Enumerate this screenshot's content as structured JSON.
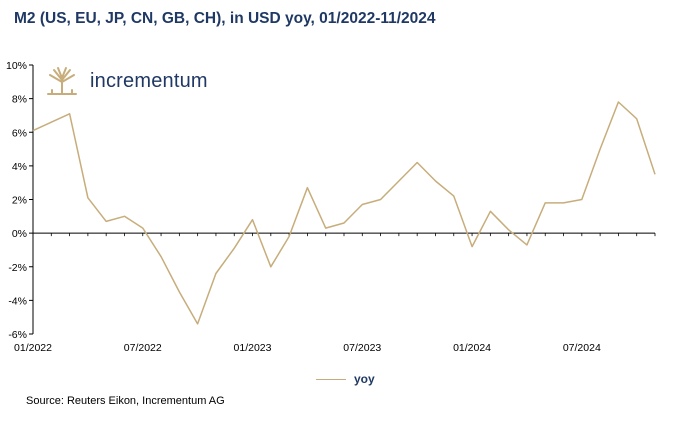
{
  "title": "M2 (US, EU, JP, CN, GB, CH), in USD yoy, 01/2022-11/2024",
  "logo": {
    "word": "incrementum",
    "icon": "tree-logo-icon"
  },
  "source": "Source: Reuters Eikon, Incrementum AG",
  "colors": {
    "series": "#c7ad7b",
    "title": "#1f3864",
    "axis": "#000000"
  },
  "chart_data": {
    "type": "line",
    "title": "M2 (US, EU, JP, CN, GB, CH), in USD yoy, 01/2022-11/2024",
    "x": [
      "01/2022",
      "02/2022",
      "03/2022",
      "04/2022",
      "05/2022",
      "06/2022",
      "07/2022",
      "08/2022",
      "09/2022",
      "10/2022",
      "11/2022",
      "12/2022",
      "01/2023",
      "02/2023",
      "03/2023",
      "04/2023",
      "05/2023",
      "06/2023",
      "07/2023",
      "08/2023",
      "09/2023",
      "10/2023",
      "11/2023",
      "12/2023",
      "01/2024",
      "02/2024",
      "03/2024",
      "04/2024",
      "05/2024",
      "06/2024",
      "07/2024",
      "08/2024",
      "09/2024",
      "10/2024",
      "11/2024"
    ],
    "x_tick_labels": [
      "01/2022",
      "07/2022",
      "01/2023",
      "07/2023",
      "01/2024",
      "07/2024"
    ],
    "series": [
      {
        "name": "yoy",
        "values": [
          6.1,
          6.6,
          7.1,
          2.1,
          0.7,
          1.0,
          0.3,
          -1.4,
          -3.5,
          -5.4,
          -2.4,
          -0.9,
          0.8,
          -2.0,
          -0.2,
          2.7,
          0.3,
          0.6,
          1.7,
          2.0,
          3.1,
          4.2,
          3.1,
          2.2,
          -0.8,
          1.3,
          0.2,
          -0.7,
          1.8,
          1.8,
          2.0,
          5.0,
          7.8,
          6.8,
          3.5
        ]
      }
    ],
    "ylim": [
      -6,
      10
    ],
    "y_ticks": [
      "-6%",
      "-4%",
      "-2%",
      "0%",
      "2%",
      "4%",
      "6%",
      "8%",
      "10%"
    ],
    "legend": {
      "position": "bottom",
      "entries": [
        "yoy"
      ]
    },
    "grid": false
  }
}
